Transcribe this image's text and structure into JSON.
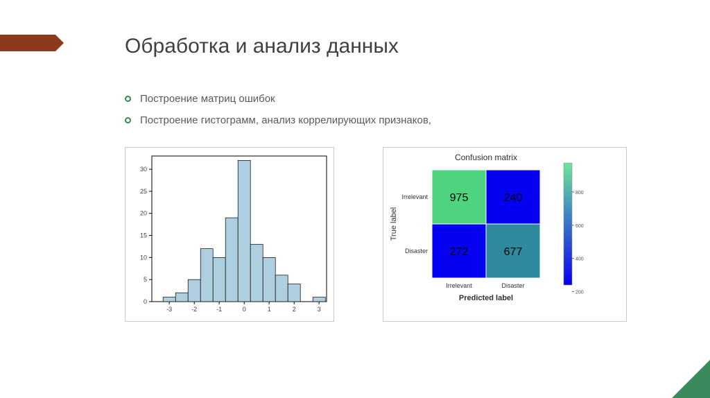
{
  "title": "Обработка и анализ данных",
  "bullets": [
    "Построение матриц ошибок",
    "Построение гистограмм, анализ коррелирующих признаков,"
  ],
  "accent_color": "#8b3a1e",
  "corner_color": "#3a8a5e",
  "histogram": {
    "type": "histogram",
    "bin_centers": [
      -3.5,
      -3,
      -2.5,
      -2,
      -1.5,
      -1,
      -0.5,
      0,
      0.5,
      1,
      1.5,
      2,
      2.5,
      3
    ],
    "counts": [
      0,
      1,
      2,
      5,
      12,
      10,
      19,
      32,
      13,
      10,
      6,
      4,
      0,
      1
    ],
    "bar_color": "#aecfe0",
    "bar_edge": "#000000",
    "xticks": [
      -3,
      -2,
      -1,
      0,
      1,
      2,
      3
    ],
    "yticks": [
      0,
      5,
      10,
      15,
      20,
      25,
      30
    ],
    "ylim": [
      0,
      33
    ],
    "xlim": [
      -3.7,
      3.3
    ],
    "bg": "#ffffff",
    "tick_fontsize": 9,
    "tick_color": "#404040"
  },
  "confusion": {
    "type": "heatmap",
    "title": "Confusion matrix",
    "title_fontsize": 12,
    "xlabel": "Predicted label",
    "ylabel": "True label",
    "label_fontsize": 11,
    "row_labels": [
      "Irrelevant",
      "Disaster"
    ],
    "col_labels": [
      "Irrelevant",
      "Disaster"
    ],
    "tick_fontsize": 9,
    "values": [
      [
        975,
        240
      ],
      [
        272,
        677
      ]
    ],
    "cell_colors": [
      [
        "#4ed47f",
        "#0600f3"
      ],
      [
        "#0600f3",
        "#2f8aa0"
      ]
    ],
    "value_text_color": "#000000",
    "value_fontsize": 16,
    "colorbar": {
      "gradient_top": "#6ee69a",
      "gradient_bottom": "#0600f3",
      "ticks": [
        200,
        400,
        600,
        800
      ],
      "tick_fontsize": 7
    },
    "bg": "#ffffff"
  }
}
